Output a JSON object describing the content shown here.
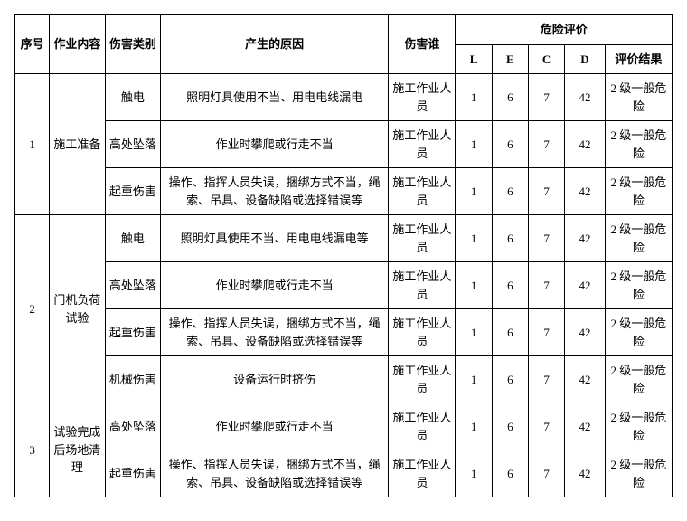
{
  "header": {
    "idx": "序号",
    "task": "作业内容",
    "type": "伤害类别",
    "cause": "产生的原因",
    "who": "伤害谁",
    "risk": "危险评价",
    "L": "L",
    "E": "E",
    "C": "C",
    "D": "D",
    "result": "评价结果"
  },
  "tasks": [
    {
      "idx": "1",
      "name": "施工准备",
      "rows": [
        {
          "type": "触电",
          "cause": "照明灯具使用不当、用电电线漏电",
          "who": "施工作业人员",
          "L": "1",
          "E": "6",
          "C": "7",
          "D": "42",
          "res": "2 级一般危险"
        },
        {
          "type": "高处坠落",
          "cause": "作业时攀爬或行走不当",
          "who": "施工作业人员",
          "L": "1",
          "E": "6",
          "C": "7",
          "D": "42",
          "res": "2 级一般危险"
        },
        {
          "type": "起重伤害",
          "cause": "操作、指挥人员失误，捆绑方式不当，绳索、吊具、设备缺陷或选择错误等",
          "who": "施工作业人员",
          "L": "1",
          "E": "6",
          "C": "7",
          "D": "42",
          "res": "2 级一般危险"
        }
      ]
    },
    {
      "idx": "2",
      "name": "门机负荷试验",
      "rows": [
        {
          "type": "触电",
          "cause": "照明灯具使用不当、用电电线漏电等",
          "who": "施工作业人员",
          "L": "1",
          "E": "6",
          "C": "7",
          "D": "42",
          "res": "2 级一般危险"
        },
        {
          "type": "高处坠落",
          "cause": "作业时攀爬或行走不当",
          "who": "施工作业人员",
          "L": "1",
          "E": "6",
          "C": "7",
          "D": "42",
          "res": "2 级一般危险"
        },
        {
          "type": "起重伤害",
          "cause": "操作、指挥人员失误，捆绑方式不当，绳索、吊具、设备缺陷或选择错误等",
          "who": "施工作业人员",
          "L": "1",
          "E": "6",
          "C": "7",
          "D": "42",
          "res": "2 级一般危险"
        },
        {
          "type": "机械伤害",
          "cause": "设备运行时挤伤",
          "who": "施工作业人员",
          "L": "1",
          "E": "6",
          "C": "7",
          "D": "42",
          "res": "2 级一般危险"
        }
      ]
    },
    {
      "idx": "3",
      "name": "试验完成后场地清理",
      "rows": [
        {
          "type": "高处坠落",
          "cause": "作业时攀爬或行走不当",
          "who": "施工作业人员",
          "L": "1",
          "E": "6",
          "C": "7",
          "D": "42",
          "res": "2 级一般危险"
        },
        {
          "type": "起重伤害",
          "cause": "操作、指挥人员失误，捆绑方式不当，绳索、吊具、设备缺陷或选择错误等",
          "who": "施工作业人员",
          "L": "1",
          "E": "6",
          "C": "7",
          "D": "42",
          "res": "2 级一般危险"
        }
      ]
    }
  ]
}
